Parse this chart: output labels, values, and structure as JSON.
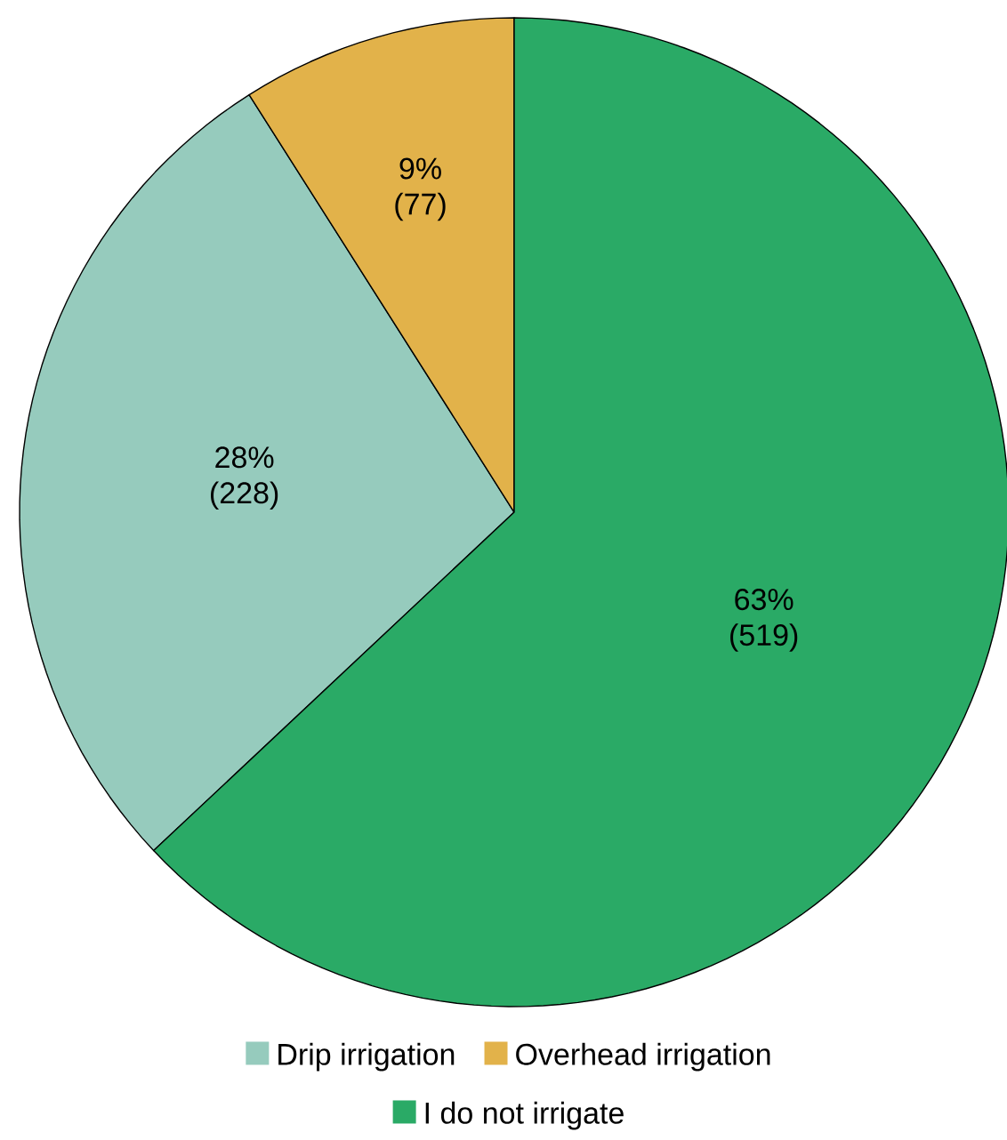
{
  "chart_data": {
    "type": "pie",
    "categories": [
      "Drip irrigation",
      "Overhead irrigation",
      "I do not irrigate"
    ],
    "values": [
      28,
      9,
      63
    ],
    "colors": [
      "#96cbbd",
      "#e2b24a",
      "#2aaa66"
    ],
    "value_labels": [
      "28% (228)",
      "9% (77)",
      "63% (519)"
    ],
    "legend": "bottom"
  }
}
